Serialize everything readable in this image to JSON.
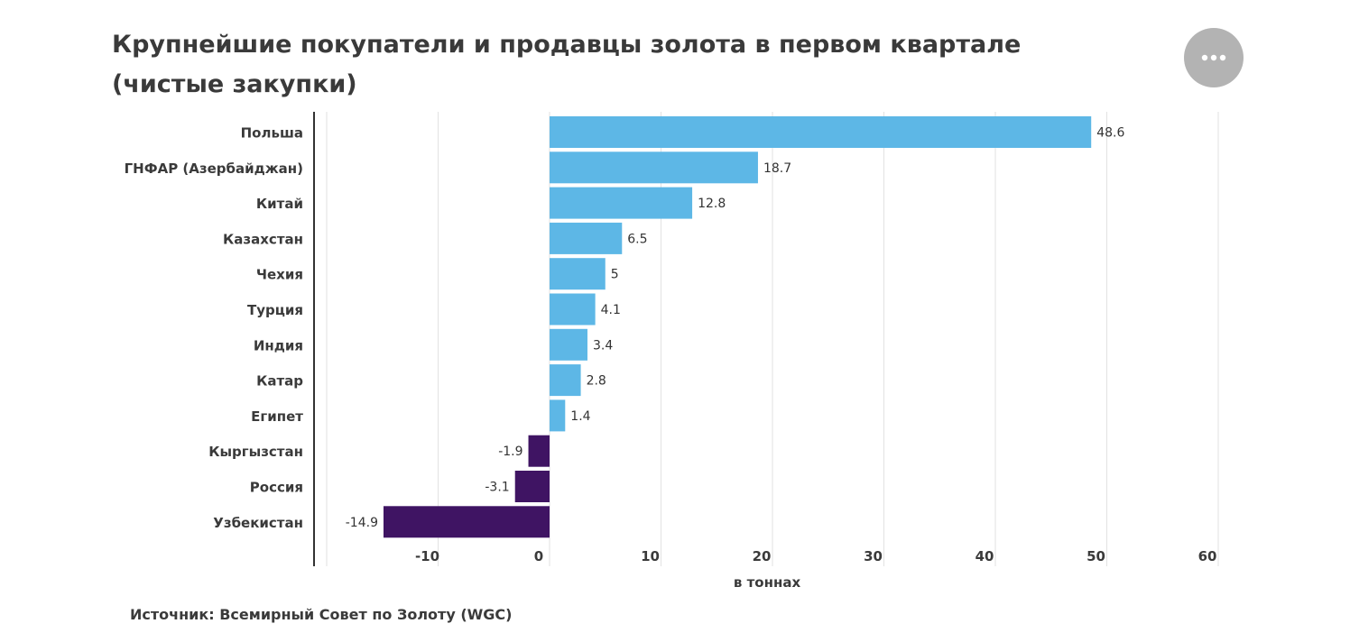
{
  "title": "Крупнейшие покупатели и продавцы золота в первом квартале (чистые закупки)",
  "source": "Источник: Всемирный Совет по Золоту (WGC)",
  "menu": {
    "icon": "more-horizontal-icon"
  },
  "colors": {
    "positive": "#5db7e6",
    "negative": "#3f1463",
    "grid": "#e2e2e2",
    "axis": "#333333"
  },
  "chart_data": {
    "type": "bar",
    "orientation": "horizontal",
    "categories": [
      "Польша",
      "ГНФАР (Азербайджан)",
      "Китай",
      "Казахстан",
      "Чехия",
      "Турция",
      "Индия",
      "Катар",
      "Египет",
      "Кыргызстан",
      "Россия",
      "Узбекистан"
    ],
    "values": [
      48.6,
      18.7,
      12.8,
      6.5,
      5,
      4.1,
      3.4,
      2.8,
      1.4,
      -1.9,
      -3.1,
      -14.9
    ],
    "value_labels": [
      "48.6",
      "18.7",
      "12.8",
      "6.5",
      "5",
      "4.1",
      "3.4",
      "2.8",
      "1.4",
      "-1.9",
      "-3.1",
      "-14.9"
    ],
    "xlabel": "в тоннах",
    "ylabel": "",
    "xlim": [
      -20,
      60
    ],
    "xticks": [
      -10,
      0,
      10,
      20,
      30,
      40,
      50,
      60
    ],
    "grid": true,
    "legend": false
  }
}
